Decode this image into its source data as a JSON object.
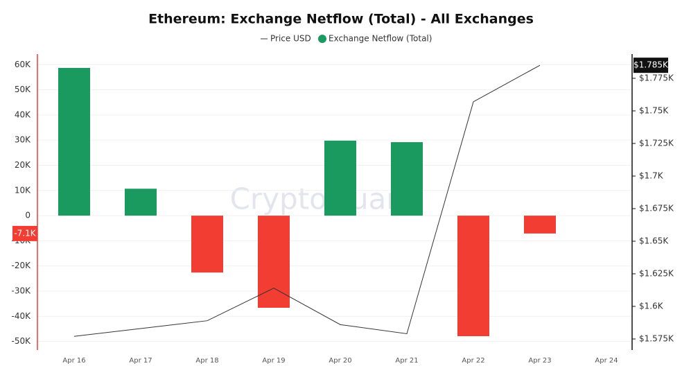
{
  "chart_data": {
    "type": "bar-line",
    "title": "Ethereum: Exchange Netflow (Total) - All Exchanges",
    "watermark": "CryptoQuant",
    "categories": [
      "Apr 16",
      "Apr 17",
      "Apr 18",
      "Apr 19",
      "Apr 20",
      "Apr 21",
      "Apr 22",
      "Apr 23",
      "Apr 24"
    ],
    "series": [
      {
        "name": "Price USD",
        "type": "line",
        "axis": "y2",
        "color": "#333333",
        "values": [
          1577,
          1583,
          1589,
          1614,
          1586,
          1579,
          1757,
          1785,
          null
        ]
      },
      {
        "name": "Exchange Netflow (Total)",
        "type": "bar",
        "color": "#1a9a5e",
        "negative_color": "#f23d33",
        "values": [
          58700,
          10700,
          -22600,
          -36600,
          29800,
          29200,
          -47900,
          -7100,
          null
        ]
      }
    ],
    "ylim": [
      -53400,
      64200
    ],
    "yticks": [
      {
        "value": 60000,
        "label": "60K"
      },
      {
        "value": 50000,
        "label": "50K"
      },
      {
        "value": 40000,
        "label": "40K"
      },
      {
        "value": 30000,
        "label": "30K"
      },
      {
        "value": 20000,
        "label": "20K"
      },
      {
        "value": 10000,
        "label": "10K"
      },
      0,
      {
        "value": -10000,
        "label": "-10K"
      },
      {
        "value": -20000,
        "label": "-20K"
      },
      {
        "value": -30000,
        "label": "-30K"
      },
      {
        "value": -40000,
        "label": "-40K"
      },
      {
        "value": -50000,
        "label": "-50K"
      }
    ],
    "y2lim": [
      1566.5,
      1793.6
    ],
    "y2ticks": [
      {
        "value": 1575,
        "label": "$1.575K"
      },
      {
        "value": 1600,
        "label": "$1.6K"
      },
      {
        "value": 1625,
        "label": "$1.625K"
      },
      {
        "value": 1650,
        "label": "$1.65K"
      },
      {
        "value": 1675,
        "label": "$1.675K"
      },
      {
        "value": 1700,
        "label": "$1.7K"
      },
      {
        "value": 1725,
        "label": "$1.725K"
      },
      {
        "value": 1750,
        "label": "$1.75K"
      },
      {
        "value": 1775,
        "label": "$1.775K"
      }
    ],
    "annotations": [
      {
        "value": -7100,
        "label": "-7.1K",
        "axis": "y",
        "color": "#f23d33"
      },
      {
        "value": 1785,
        "label": "$1.785K",
        "axis": "y2",
        "color": "#111111"
      }
    ],
    "grid": true
  }
}
